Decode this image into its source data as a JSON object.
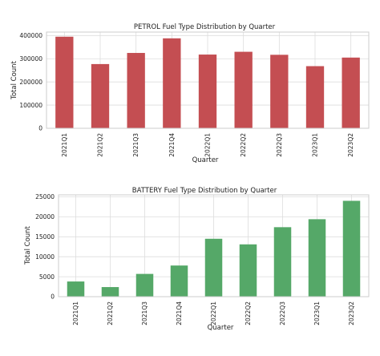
{
  "chart_data": [
    {
      "type": "bar",
      "title": "PETROL Fuel Type Distribution by Quarter",
      "xlabel": "Quarter",
      "ylabel": "Total Count",
      "categories": [
        "2021Q1",
        "2021Q2",
        "2021Q3",
        "2021Q4",
        "2022Q1",
        "2022Q2",
        "2022Q3",
        "2023Q1",
        "2023Q2"
      ],
      "values": [
        395000,
        277000,
        325000,
        388000,
        318000,
        330000,
        317000,
        268000,
        305000
      ],
      "yticks": [
        0,
        100000,
        200000,
        300000,
        400000
      ],
      "ytick_labels": [
        "0",
        "100000",
        "200000",
        "300000",
        "400000"
      ],
      "ylim": [
        0,
        415000
      ],
      "grid": true,
      "bar_color": "#c44e52"
    },
    {
      "type": "bar",
      "title": "BATTERY Fuel Type Distribution by Quarter",
      "xlabel": "Quarter",
      "ylabel": "Total Count",
      "categories": [
        "2021Q1",
        "2021Q2",
        "2021Q3",
        "2021Q4",
        "2022Q1",
        "2022Q2",
        "2022Q3",
        "2023Q1",
        "2023Q2"
      ],
      "values": [
        3800,
        2400,
        5700,
        7800,
        14500,
        13100,
        17400,
        19400,
        24000
      ],
      "yticks": [
        0,
        5000,
        10000,
        15000,
        20000,
        25000
      ],
      "ytick_labels": [
        "0",
        "5000",
        "10000",
        "15000",
        "20000",
        "25000"
      ],
      "ylim": [
        0,
        25500
      ],
      "grid": true,
      "bar_color": "#55a868"
    }
  ]
}
